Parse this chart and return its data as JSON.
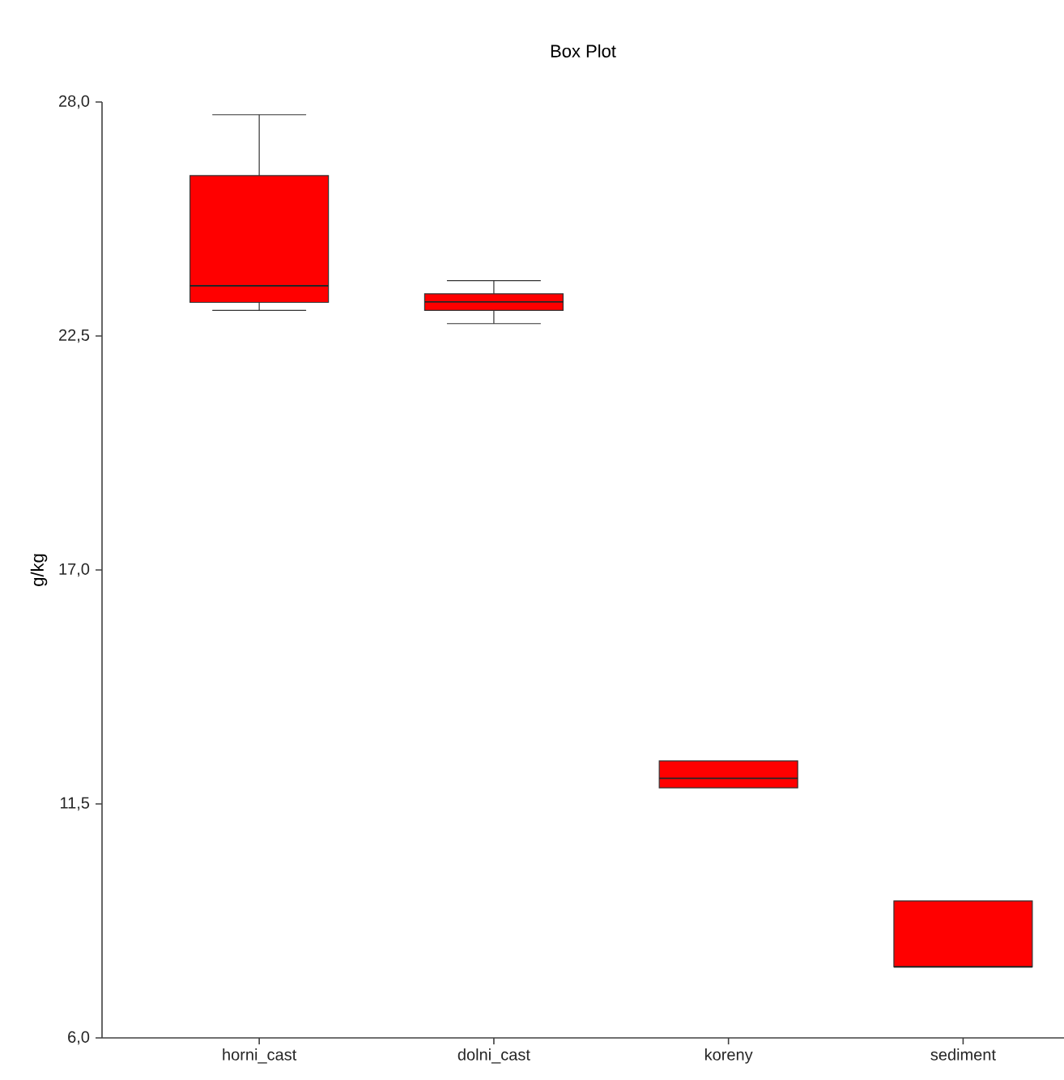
{
  "chart_data": {
    "type": "box",
    "title": "Box Plot",
    "ylabel": "g/kg",
    "color": "#ff0000",
    "categories": [
      "horni_cast",
      "dolni_cast",
      "koreny",
      "sediment"
    ],
    "boxes": [
      {
        "low": 23.1,
        "q1": 23.29,
        "median": 23.68,
        "q3": 26.27,
        "high": 27.7
      },
      {
        "low": 22.79,
        "q1": 23.1,
        "median": 23.3,
        "q3": 23.49,
        "high": 23.8
      },
      {
        "low": 11.88,
        "q1": 11.88,
        "median": 12.1,
        "q3": 12.51,
        "high": 12.51
      },
      {
        "low": 7.67,
        "q1": 7.67,
        "median": 7.67,
        "q3": 9.22,
        "high": 9.22
      }
    ],
    "ylim": [
      6,
      28
    ],
    "yticks": [
      {
        "value": 6,
        "label": "6,0"
      },
      {
        "value": 11.5,
        "label": "11,5"
      },
      {
        "value": 17,
        "label": "17,0"
      },
      {
        "value": 22.5,
        "label": "22,5"
      },
      {
        "value": 28,
        "label": "28,0"
      }
    ]
  }
}
